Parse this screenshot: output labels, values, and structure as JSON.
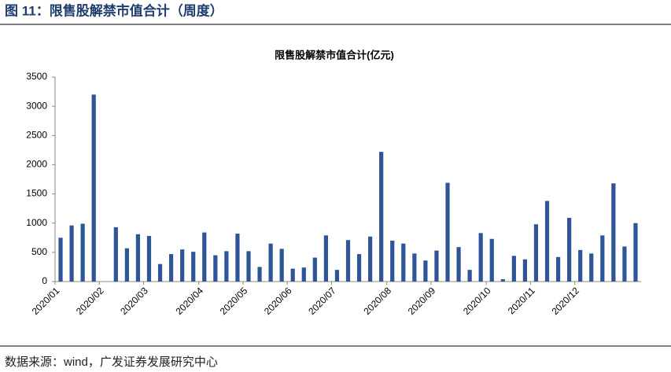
{
  "header": {
    "title": "图 11：限售股解禁市值合计（周度）"
  },
  "chart_data": {
    "type": "bar",
    "title": "限售股解禁市值合计(亿元)",
    "categories": [
      "2020/01",
      null,
      null,
      null,
      "2020/02",
      null,
      null,
      null,
      "2020/03",
      null,
      null,
      null,
      null,
      "2020/04",
      null,
      null,
      null,
      "2020/05",
      null,
      null,
      null,
      "2020/06",
      null,
      null,
      null,
      "2020/07",
      null,
      null,
      null,
      null,
      "2020/08",
      null,
      null,
      null,
      "2020/09",
      null,
      null,
      null,
      null,
      "2020/10",
      null,
      null,
      null,
      "2020/11",
      null,
      null,
      null,
      "2020/12",
      null,
      null,
      null,
      null,
      null
    ],
    "values": [
      750,
      960,
      990,
      3200,
      0,
      930,
      570,
      810,
      780,
      300,
      470,
      550,
      510,
      840,
      450,
      520,
      820,
      520,
      250,
      650,
      560,
      220,
      240,
      410,
      790,
      200,
      710,
      470,
      770,
      2220,
      700,
      650,
      480,
      360,
      530,
      1690,
      590,
      200,
      830,
      730,
      40,
      440,
      380,
      980,
      1380,
      420,
      1090,
      540,
      480,
      790,
      1680,
      600,
      1000
    ],
    "color": "#2e5597",
    "ylim": [
      0,
      3500
    ],
    "yticks": [
      0,
      500,
      1000,
      1500,
      2000,
      2500,
      3000,
      3500
    ],
    "grid": false
  },
  "source": "数据来源：wind，广发证券发展研究中心"
}
